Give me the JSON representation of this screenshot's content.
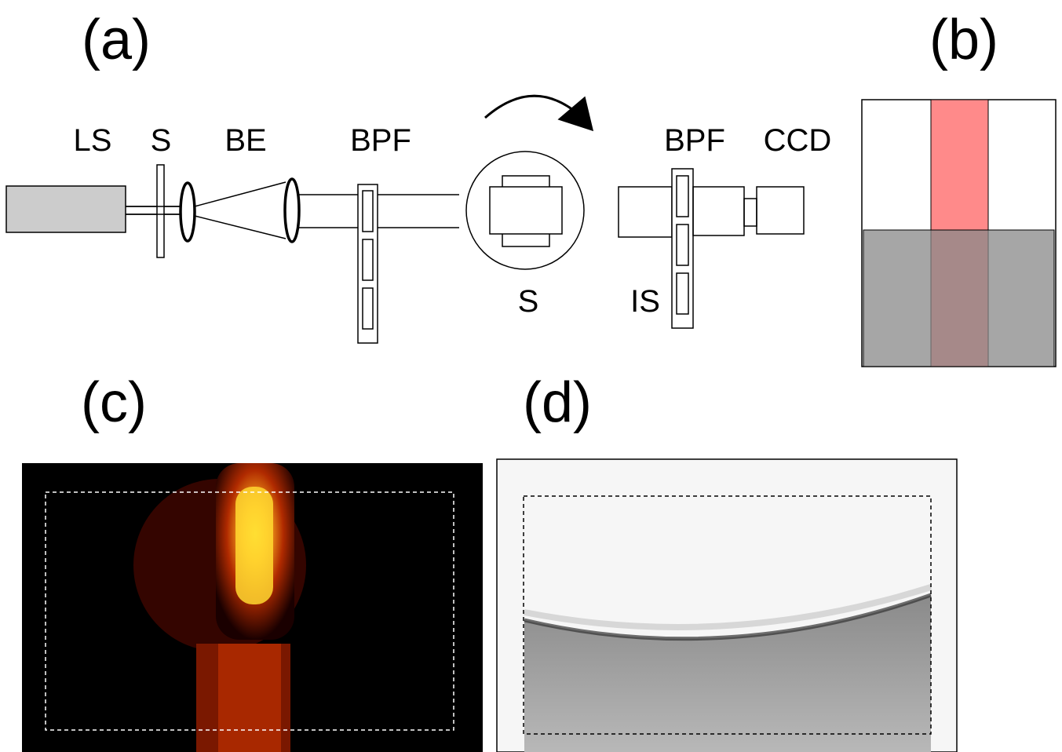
{
  "panels": [
    {
      "label": "(a)"
    },
    {
      "label": "(b)"
    },
    {
      "label": "(c)"
    },
    {
      "label": "(d)"
    }
  ],
  "components": [
    {
      "label": "LS"
    },
    {
      "label": "S"
    },
    {
      "label": "BE"
    },
    {
      "label": "BPF"
    },
    {
      "label": "BPF"
    },
    {
      "label": "CCD"
    },
    {
      "label": "S"
    },
    {
      "label": "IS"
    }
  ]
}
